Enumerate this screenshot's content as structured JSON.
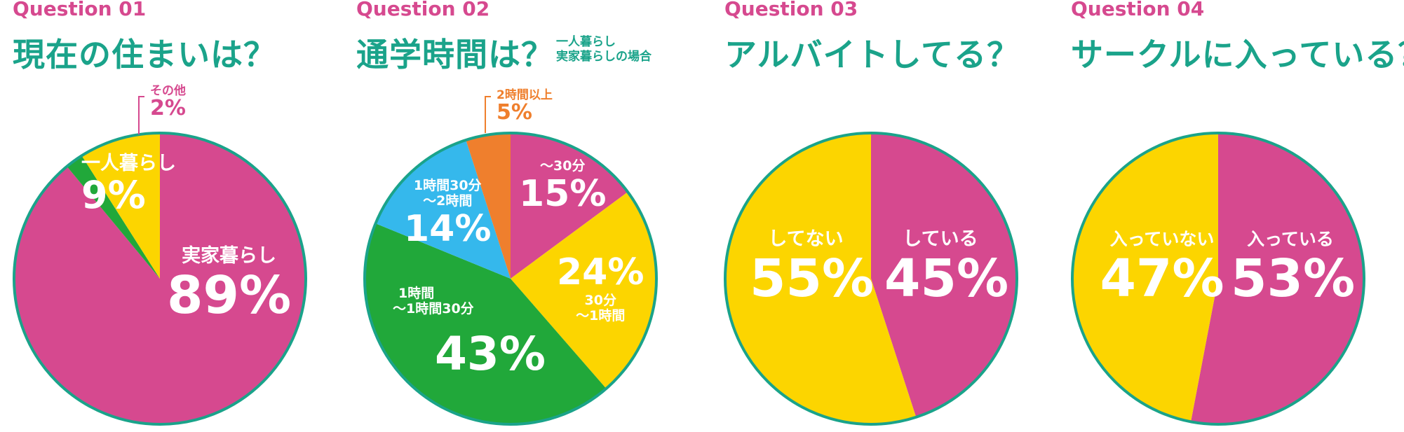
{
  "colors": {
    "magenta": "#d6498f",
    "yellow": "#fcd500",
    "green": "#21a83a",
    "cyan": "#35b8ec",
    "orange": "#ef7f2d",
    "teal": "#1aa38a",
    "title_color": "#1aa38a",
    "question_color": "#d6498f"
  },
  "chart_data": [
    {
      "type": "pie",
      "question": "Question 01",
      "title": "現在の住まいは？",
      "slices": [
        {
          "label": "実家暮らし",
          "value": 89,
          "pct_text": "89%",
          "color": "#d6498f"
        },
        {
          "label": "その他",
          "value": 2,
          "pct_text": "2%",
          "color": "#21a83a"
        },
        {
          "label": "一人暮らし",
          "value": 9,
          "pct_text": "9%",
          "color": "#fcd500"
        }
      ]
    },
    {
      "type": "pie",
      "question": "Question 02",
      "title": "通学時間は？",
      "note": [
        "一人暮らし",
        "実家暮らしの場合"
      ],
      "slices": [
        {
          "label": "～30分",
          "value": 15,
          "pct_text": "15%",
          "color": "#d6498f"
        },
        {
          "label": "30分 ～1時間",
          "label_lines": [
            "30分",
            "～1時間"
          ],
          "value": 24,
          "pct_text": "24%",
          "color": "#fcd500"
        },
        {
          "label": "1時間 ～1時間30分",
          "label_lines": [
            "1時間",
            "～1時間30分"
          ],
          "value": 43,
          "pct_text": "43%",
          "color": "#21a83a"
        },
        {
          "label": "1時間30分 ～2時間",
          "label_lines": [
            "1時間30分",
            "～2時間"
          ],
          "value": 14,
          "pct_text": "14%",
          "color": "#35b8ec"
        },
        {
          "label": "2時間以上",
          "value": 5,
          "pct_text": "5%",
          "color": "#ef7f2d"
        }
      ]
    },
    {
      "type": "pie",
      "question": "Question 03",
      "title": "アルバイトしてる？",
      "slices": [
        {
          "label": "している",
          "value": 45,
          "pct_text": "45%",
          "color": "#d6498f"
        },
        {
          "label": "してない",
          "value": 55,
          "pct_text": "55%",
          "color": "#fcd500"
        }
      ]
    },
    {
      "type": "pie",
      "question": "Question 04",
      "title": "サークルに入っている？",
      "slices": [
        {
          "label": "入っている",
          "value": 53,
          "pct_text": "53%",
          "color": "#d6498f"
        },
        {
          "label": "入っていない",
          "value": 47,
          "pct_text": "47%",
          "color": "#fcd500"
        }
      ]
    }
  ]
}
